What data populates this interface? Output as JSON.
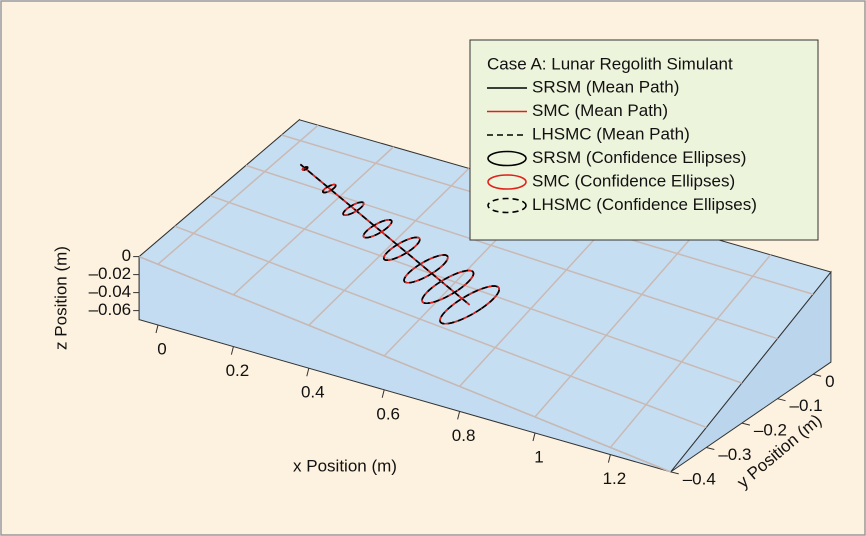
{
  "chart_data": {
    "type": "path3d",
    "xlabel": "x Position (m)",
    "ylabel": "y Position (m)",
    "zlabel": "z Position (m)",
    "legend_title": "Case A: Lunar Regolith Simulant",
    "xticks": [
      0,
      0.2,
      0.4,
      0.6,
      0.8,
      1,
      1.2
    ],
    "yticks": [
      0,
      {
        "value": -0.1,
        "label": "–0.1"
      },
      {
        "value": -0.2,
        "label": "–0.2"
      },
      {
        "value": -0.3,
        "label": "–0.3"
      },
      {
        "value": -0.4,
        "label": "–0.4"
      }
    ],
    "zticks": [
      0,
      {
        "value": -0.02,
        "label": "–0.02"
      },
      {
        "value": -0.04,
        "label": "–0.04"
      },
      {
        "value": -0.06,
        "label": "–0.06"
      }
    ],
    "grid": true,
    "series": [
      {
        "name": "SRSM (Mean Path)",
        "kind": "path",
        "color": "#000000",
        "dash": false,
        "x": [
          0,
          0.1,
          0.2,
          0.3,
          0.4,
          0.5,
          0.6,
          0.7
        ],
        "values": [
          0,
          -0.038,
          -0.076,
          -0.114,
          -0.152,
          -0.19,
          -0.228,
          -0.266
        ]
      },
      {
        "name": "SMC (Mean Path)",
        "kind": "path",
        "color": "#e0201b",
        "dash": false,
        "x": [
          0,
          0.1,
          0.2,
          0.3,
          0.4,
          0.5,
          0.6,
          0.7
        ],
        "values": [
          0,
          -0.038,
          -0.076,
          -0.114,
          -0.152,
          -0.19,
          -0.228,
          -0.266
        ]
      },
      {
        "name": "LHSMC (Mean Path)",
        "kind": "path",
        "color": "#000000",
        "dash": true,
        "x": [
          0,
          0.1,
          0.2,
          0.3,
          0.4,
          0.5,
          0.6,
          0.7
        ],
        "values": [
          0,
          -0.038,
          -0.076,
          -0.114,
          -0.152,
          -0.19,
          -0.228,
          -0.266
        ]
      },
      {
        "name": "SRSM (Confidence Ellipses)",
        "kind": "ellipse",
        "color": "#000000",
        "dash": false,
        "x": [
          0.02,
          0.12,
          0.22,
          0.32,
          0.42,
          0.52,
          0.61,
          0.7
        ],
        "values": [
          -0.008,
          -0.046,
          -0.084,
          -0.122,
          -0.16,
          -0.198,
          -0.232,
          -0.266
        ],
        "sx": [
          0.004,
          0.008,
          0.012,
          0.016,
          0.02,
          0.024,
          0.028,
          0.032
        ],
        "sy": [
          0.006,
          0.016,
          0.026,
          0.036,
          0.046,
          0.056,
          0.066,
          0.076
        ]
      },
      {
        "name": "SMC (Confidence Ellipses)",
        "kind": "ellipse",
        "color": "#e0201b",
        "dash": false,
        "x": [
          0.02,
          0.12,
          0.22,
          0.32,
          0.42,
          0.52,
          0.61,
          0.7
        ],
        "values": [
          -0.008,
          -0.046,
          -0.084,
          -0.122,
          -0.16,
          -0.198,
          -0.232,
          -0.266
        ],
        "sx": [
          0.004,
          0.008,
          0.012,
          0.016,
          0.02,
          0.024,
          0.028,
          0.032
        ],
        "sy": [
          0.006,
          0.016,
          0.026,
          0.036,
          0.046,
          0.056,
          0.066,
          0.076
        ]
      },
      {
        "name": "LHSMC (Confidence Ellipses)",
        "kind": "ellipse",
        "color": "#000000",
        "dash": true,
        "x": [
          0.02,
          0.12,
          0.22,
          0.32,
          0.42,
          0.52,
          0.61,
          0.7
        ],
        "values": [
          -0.008,
          -0.046,
          -0.084,
          -0.122,
          -0.16,
          -0.198,
          -0.232,
          -0.266
        ],
        "sx": [
          0.004,
          0.008,
          0.012,
          0.016,
          0.02,
          0.024,
          0.028,
          0.032
        ],
        "sy": [
          0.006,
          0.016,
          0.026,
          0.036,
          0.046,
          0.056,
          0.066,
          0.076
        ]
      }
    ]
  }
}
